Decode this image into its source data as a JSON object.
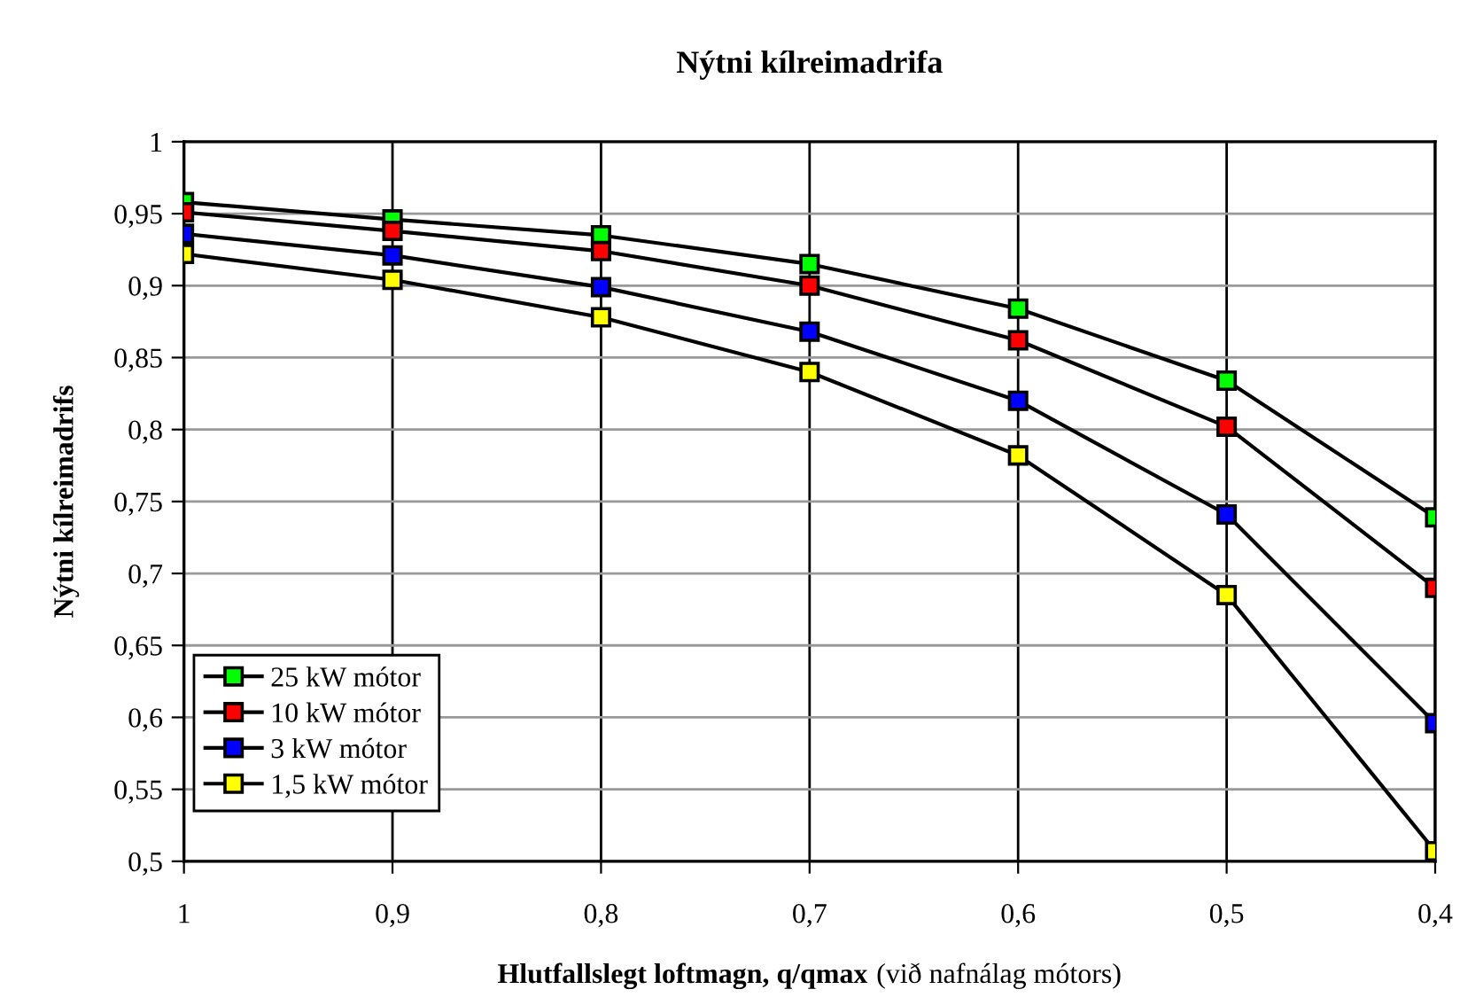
{
  "chart_data": {
    "type": "line",
    "title": "Nýtni kílreimadrifa",
    "xlabel": "Hlutfallslegt loftmagn, q/qmax",
    "ylabel": "Nýtni kílreimadrifs",
    "annotations": [
      "(við nafnálag mótors)"
    ],
    "x": [
      1,
      0.9,
      0.8,
      0.7,
      0.6,
      0.5,
      0.4
    ],
    "series": [
      {
        "name": "25 kW mótor",
        "color": "#00ff00",
        "values": [
          0.958,
          0.946,
          0.935,
          0.915,
          0.884,
          0.834,
          0.739
        ]
      },
      {
        "name": "10 kW mótor",
        "color": "#ff0000",
        "values": [
          0.951,
          0.938,
          0.924,
          0.9,
          0.862,
          0.802,
          0.69
        ]
      },
      {
        "name": "3 kW mótor",
        "color": "#0000ff",
        "values": [
          0.936,
          0.921,
          0.899,
          0.868,
          0.82,
          0.741,
          0.596
        ]
      },
      {
        "name": "1,5 kW mótor",
        "color": "#ffff00",
        "values": [
          0.922,
          0.904,
          0.878,
          0.84,
          0.782,
          0.685,
          0.507
        ]
      }
    ],
    "xlim": [
      1,
      0.4
    ],
    "xticks": [
      1,
      {
        "value": 0.9,
        "label": "0,9"
      },
      {
        "value": 0.8,
        "label": "0,8"
      },
      {
        "value": 0.7,
        "label": "0,7"
      },
      {
        "value": 0.6,
        "label": "0,6"
      },
      {
        "value": 0.5,
        "label": "0,5"
      },
      {
        "value": 0.4,
        "label": "0,4"
      }
    ],
    "ylim": [
      0.5,
      1
    ],
    "yticks": [
      {
        "value": 0.5,
        "label": "0,5"
      },
      {
        "value": 0.55,
        "label": "0,55"
      },
      {
        "value": 0.6,
        "label": "0,6"
      },
      {
        "value": 0.65,
        "label": "0,65"
      },
      {
        "value": 0.7,
        "label": "0,7"
      },
      {
        "value": 0.75,
        "label": "0,75"
      },
      {
        "value": 0.8,
        "label": "0,8"
      },
      {
        "value": 0.85,
        "label": "0,85"
      },
      {
        "value": 0.9,
        "label": "0,9"
      },
      {
        "value": 0.95,
        "label": "0,95"
      },
      1
    ],
    "grid": true,
    "legend": "lower left",
    "marker": "square",
    "line_style": "solid"
  }
}
